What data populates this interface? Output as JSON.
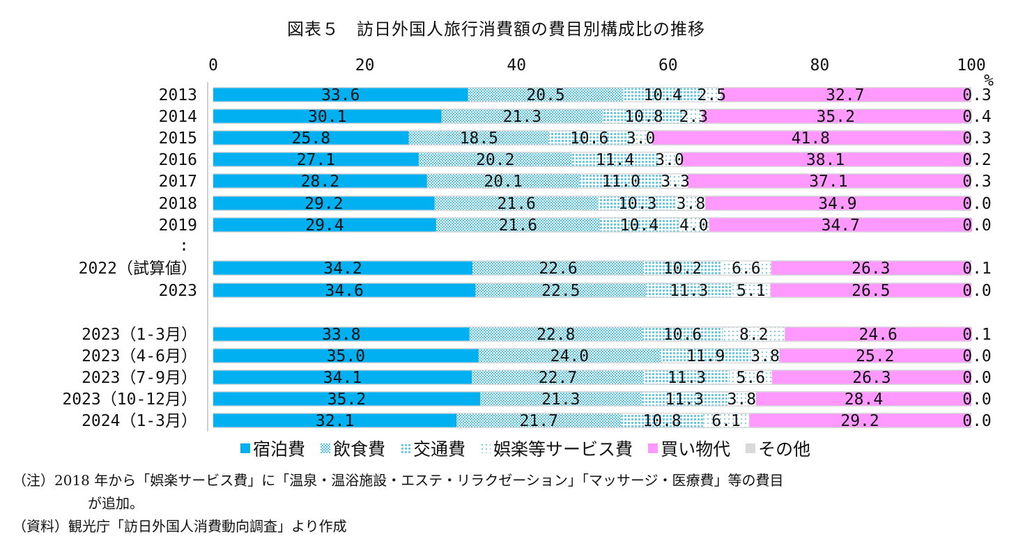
{
  "chart_data": {
    "type": "bar",
    "orientation": "horizontal",
    "stacked": true,
    "title": "図表５　訪日外国人旅行消費額の費目別構成比の推移",
    "xlim": [
      0,
      100
    ],
    "xticks": [
      "0",
      "20",
      "40",
      "60",
      "80",
      "100"
    ],
    "x_unit": "%",
    "ellipsis": ":",
    "categories": [
      "2013",
      "2014",
      "2015",
      "2016",
      "2017",
      "2018",
      "2019",
      "2022（試算値）",
      "2023",
      "2023（1-3月）",
      "2023（4-6月）",
      "2023（7-9月）",
      "2023（10-12月）",
      "2024（1-3月）"
    ],
    "series": [
      {
        "name": "宿泊費",
        "color": "#00b0f0",
        "pattern": "solid",
        "values": [
          33.6,
          30.1,
          25.8,
          27.1,
          28.2,
          29.2,
          29.4,
          34.2,
          34.6,
          33.8,
          35.0,
          34.1,
          35.2,
          32.1
        ],
        "labels": [
          "33.6",
          "30.1",
          "25.8",
          "27.1",
          "28.2",
          "29.2",
          "29.4",
          "34.2",
          "34.6",
          "33.8",
          "35.0",
          "34.1",
          "35.2",
          "32.1"
        ]
      },
      {
        "name": "飲食費",
        "color": "#7fcfe0",
        "pattern": "dots-cyan",
        "values": [
          20.5,
          21.3,
          18.5,
          20.2,
          20.1,
          21.6,
          21.6,
          22.6,
          22.5,
          22.8,
          24.0,
          22.7,
          21.3,
          21.7
        ],
        "labels": [
          "20.5",
          "21.3",
          "18.5",
          "20.2",
          "20.1",
          "21.6",
          "21.6",
          "22.6",
          "22.5",
          "22.8",
          "24.0",
          "22.7",
          "21.3",
          "21.7"
        ]
      },
      {
        "name": "交通費",
        "color": "#7fcfe0",
        "pattern": "grid-cyan",
        "values": [
          10.4,
          10.8,
          10.6,
          11.4,
          11.0,
          10.3,
          10.4,
          10.2,
          11.3,
          10.6,
          11.9,
          11.3,
          11.3,
          10.8
        ],
        "labels": [
          "10.4",
          "10.8",
          "10.6",
          "11.4",
          "11.0",
          "10.3",
          "10.4",
          "10.2",
          "11.3",
          "10.6",
          "11.9",
          "11.3",
          "11.3",
          "10.8"
        ]
      },
      {
        "name": "娯楽等サービス費",
        "color": "#c9e6ee",
        "pattern": "sparse-dots",
        "values": [
          2.5,
          2.3,
          3.0,
          3.0,
          3.3,
          3.8,
          4.0,
          6.6,
          5.1,
          8.2,
          3.8,
          5.6,
          3.8,
          6.1
        ],
        "labels": [
          "2.5",
          "2.3",
          "3.0",
          "3.0",
          "3.3",
          "3.8",
          "4.0",
          "6.6",
          "5.1",
          "8.2",
          "3.8",
          "5.6",
          "3.8",
          "6.1"
        ]
      },
      {
        "name": "買い物代",
        "color": "#ff99ff",
        "pattern": "solid",
        "values": [
          32.7,
          35.2,
          41.8,
          38.1,
          37.1,
          34.9,
          34.7,
          26.3,
          26.5,
          24.6,
          25.2,
          26.3,
          28.4,
          29.2
        ],
        "labels": [
          "32.7",
          "35.2",
          "41.8",
          "38.1",
          "37.1",
          "34.9",
          "34.7",
          "26.3",
          "26.5",
          "24.6",
          "25.2",
          "26.3",
          "28.4",
          "29.2"
        ]
      },
      {
        "name": "その他",
        "color": "#d9d9d9",
        "pattern": "solid",
        "values": [
          0.3,
          0.4,
          0.3,
          0.2,
          0.3,
          0.0,
          0.0,
          0.1,
          0.0,
          0.1,
          0.0,
          0.0,
          0.0,
          0.0
        ],
        "labels": [
          "0.3",
          "0.4",
          "0.3",
          "0.2",
          "0.3",
          "0.0",
          "0.0",
          "0.1",
          "0.0",
          "0.1",
          "0.0",
          "0.0",
          "0.0",
          "0.0"
        ]
      }
    ],
    "legend_position": "bottom",
    "grid": false
  },
  "notes": {
    "note_line1": "（注）2018 年から「娯楽サービス費」に「温泉・温浴施設・エステ・リラクゼーション」「マッサージ・医療費」等の費目",
    "note_line2": "が追加。",
    "source": "（資料）観光庁「訪日外国人消費動向調査」より作成"
  }
}
